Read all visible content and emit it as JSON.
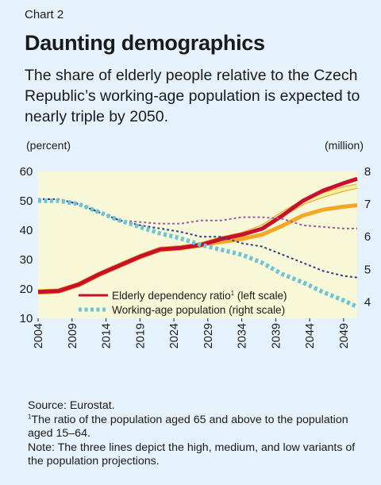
{
  "header": {
    "chart_number": "Chart 2",
    "title": "Daunting demographics",
    "subtitle": "The share of elderly people relative to the Czech Republic’s working-age population is expected to nearly triple by 2050."
  },
  "units": {
    "left": "(percent)",
    "right": "(million)"
  },
  "notes": {
    "source": "Source: Eurostat.",
    "footnote_mark": "1",
    "footnote_text": "The ratio of the population aged 65 and above to the population aged 15–64.",
    "note": "Note: The three lines depict the high, medium, and low variants of the population projections."
  },
  "colors": {
    "background": "#e6f2fb",
    "plot_area": "#f8f8d8",
    "high_ratio": "#c8102e",
    "medium_ratio": "#f5a623",
    "low_ratio": "#f0f0a0",
    "working_age": "#6cc4d8",
    "working_age_high": "#a05aa0",
    "working_age_low": "#2a3f8f"
  },
  "chart_data": {
    "type": "line",
    "title": "Daunting demographics",
    "xlabel": "",
    "ylabel_left": "(percent)",
    "ylabel_right": "(million)",
    "x_ticks": [
      "2004",
      "2009",
      "2014",
      "2019",
      "2024",
      "2029",
      "2034",
      "2039",
      "2044",
      "2049"
    ],
    "xlim": [
      2004,
      2051
    ],
    "ylim_left": [
      10,
      60
    ],
    "yticks_left": [
      "10",
      "20",
      "30",
      "40",
      "50",
      "60"
    ],
    "ylim_right": [
      3.5,
      8
    ],
    "yticks_right": [
      "4",
      "5",
      "6",
      "7",
      "8"
    ],
    "grid": false,
    "legend_position": "bottom-center",
    "legend": [
      {
        "label": "Elderly dependency ratio",
        "sup": "1",
        "label_suffix": " (left scale)",
        "style": "solid"
      },
      {
        "label": "Working-age population (right scale)",
        "style": "dotted"
      }
    ],
    "series": [
      {
        "axis": "left",
        "variant": "low",
        "x": [
          2004,
          2007,
          2010,
          2013,
          2016,
          2019,
          2022,
          2025,
          2028,
          2031,
          2034,
          2037,
          2040,
          2043,
          2046,
          2049,
          2051
        ],
        "values": [
          19,
          19.3,
          21.5,
          25,
          28,
          31,
          33.5,
          34,
          35,
          37,
          38.5,
          41,
          45.5,
          49.5,
          52,
          54,
          55
        ]
      },
      {
        "axis": "left",
        "variant": "medium",
        "x": [
          2004,
          2007,
          2010,
          2013,
          2016,
          2019,
          2022,
          2025,
          2028,
          2031,
          2034,
          2037,
          2040,
          2043,
          2046,
          2049,
          2051
        ],
        "values": [
          19,
          19.3,
          21.5,
          25,
          28,
          31,
          33.5,
          34,
          35,
          36,
          37,
          38.5,
          41.5,
          45,
          47,
          48,
          48.5
        ]
      },
      {
        "axis": "left",
        "variant": "high",
        "x": [
          2004,
          2007,
          2010,
          2013,
          2016,
          2019,
          2022,
          2025,
          2028,
          2031,
          2034,
          2037,
          2040,
          2043,
          2046,
          2049,
          2051
        ],
        "values": [
          19,
          19.3,
          21.5,
          25,
          28,
          31,
          33.5,
          34,
          35,
          37,
          38.5,
          40.5,
          45,
          50,
          53.5,
          56,
          57.5
        ]
      },
      {
        "axis": "right",
        "variant": "high",
        "x": [
          2004,
          2007,
          2010,
          2013,
          2016,
          2019,
          2022,
          2025,
          2028,
          2031,
          2034,
          2037,
          2040,
          2043,
          2046,
          2049,
          2051
        ],
        "values": [
          7.15,
          7.15,
          7.0,
          6.75,
          6.5,
          6.45,
          6.4,
          6.4,
          6.5,
          6.5,
          6.6,
          6.6,
          6.55,
          6.35,
          6.3,
          6.25,
          6.25
        ]
      },
      {
        "axis": "right",
        "variant": "low",
        "x": [
          2004,
          2007,
          2010,
          2013,
          2016,
          2019,
          2022,
          2025,
          2028,
          2031,
          2034,
          2037,
          2040,
          2043,
          2046,
          2049,
          2051
        ],
        "values": [
          7.15,
          7.15,
          7.0,
          6.75,
          6.5,
          6.35,
          6.25,
          6.15,
          6.0,
          6.0,
          5.8,
          5.7,
          5.45,
          5.2,
          4.95,
          4.8,
          4.75
        ]
      },
      {
        "axis": "right",
        "variant": "medium",
        "x": [
          2004,
          2007,
          2010,
          2013,
          2016,
          2019,
          2022,
          2025,
          2028,
          2031,
          2034,
          2037,
          2040,
          2043,
          2046,
          2049,
          2051
        ],
        "values": [
          7.1,
          7.1,
          7.0,
          6.75,
          6.5,
          6.3,
          6.1,
          5.95,
          5.75,
          5.6,
          5.45,
          5.2,
          4.85,
          4.6,
          4.3,
          4.05,
          3.85
        ]
      }
    ]
  }
}
